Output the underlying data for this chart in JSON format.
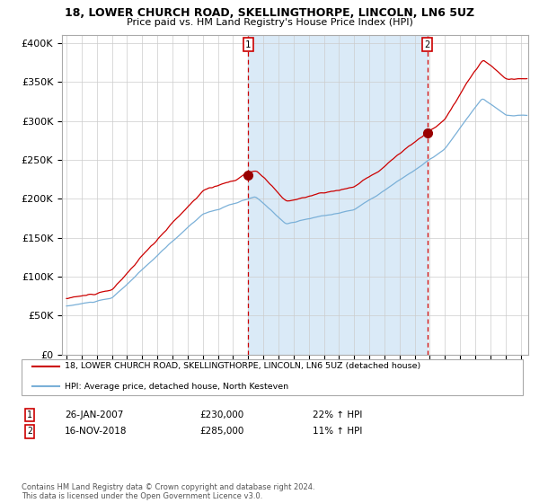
{
  "title": "18, LOWER CHURCH ROAD, SKELLINGTHORPE, LINCOLN, LN6 5UZ",
  "subtitle": "Price paid vs. HM Land Registry's House Price Index (HPI)",
  "sale1_label": "26-JAN-2007",
  "sale1_price": 230000,
  "sale1_hpi_pct": "22% ↑ HPI",
  "sale2_label": "16-NOV-2018",
  "sale2_price": 285000,
  "sale2_hpi_pct": "11% ↑ HPI",
  "hpi_line_color": "#7ab0d8",
  "property_line_color": "#cc0000",
  "dot_color": "#990000",
  "vline_color": "#cc0000",
  "bg_fill_color": "#daeaf7",
  "background_color": "#ffffff",
  "grid_color": "#cccccc",
  "ylim": [
    0,
    410000
  ],
  "xlim_start": 1994.7,
  "xlim_end": 2025.5,
  "legend1": "18, LOWER CHURCH ROAD, SKELLINGTHORPE, LINCOLN, LN6 5UZ (detached house)",
  "legend2": "HPI: Average price, detached house, North Kesteven",
  "footnote": "Contains HM Land Registry data © Crown copyright and database right 2024.\nThis data is licensed under the Open Government Licence v3.0.",
  "yticks": [
    0,
    50000,
    100000,
    150000,
    200000,
    250000,
    300000,
    350000,
    400000
  ],
  "ytick_labels": [
    "£0",
    "£50K",
    "£100K",
    "£150K",
    "£200K",
    "£250K",
    "£300K",
    "£350K",
    "£400K"
  ]
}
